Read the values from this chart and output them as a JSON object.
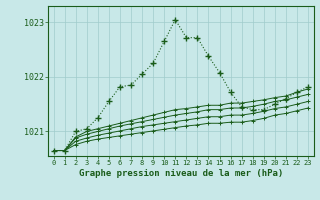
{
  "title": "Graphe pression niveau de la mer (hPa)",
  "bg_color": "#c8e8e8",
  "grid_color": "#a0cccc",
  "line_color": "#1a5c1a",
  "x_labels": [
    "0",
    "1",
    "2",
    "3",
    "4",
    "5",
    "6",
    "7",
    "8",
    "9",
    "10",
    "11",
    "12",
    "13",
    "14",
    "15",
    "16",
    "17",
    "18",
    "19",
    "20",
    "21",
    "22",
    "23"
  ],
  "ylim": [
    1020.55,
    1023.3
  ],
  "yticks": [
    1021,
    1022,
    1023
  ],
  "series_main": [
    1020.65,
    1020.65,
    1021.0,
    1021.05,
    1021.25,
    1021.55,
    1021.82,
    1021.85,
    1022.05,
    1022.25,
    1022.65,
    1023.05,
    1022.72,
    1022.72,
    1022.38,
    1022.08,
    1021.72,
    1021.45,
    1021.4,
    1021.4,
    1021.5,
    1021.6,
    1021.72,
    1021.82
  ],
  "series_flat": [
    [
      1020.65,
      1020.65,
      1020.9,
      1021.0,
      1021.05,
      1021.1,
      1021.15,
      1021.2,
      1021.25,
      1021.3,
      1021.35,
      1021.4,
      1021.42,
      1021.45,
      1021.48,
      1021.48,
      1021.52,
      1021.52,
      1021.55,
      1021.58,
      1021.62,
      1021.65,
      1021.72,
      1021.78
    ],
    [
      1020.65,
      1020.65,
      1020.88,
      1020.95,
      1021.0,
      1021.05,
      1021.1,
      1021.14,
      1021.18,
      1021.22,
      1021.26,
      1021.3,
      1021.33,
      1021.36,
      1021.4,
      1021.4,
      1021.43,
      1021.43,
      1021.46,
      1021.5,
      1021.55,
      1021.58,
      1021.63,
      1021.68
    ],
    [
      1020.65,
      1020.65,
      1020.82,
      1020.88,
      1020.93,
      1020.97,
      1021.01,
      1021.05,
      1021.09,
      1021.12,
      1021.15,
      1021.18,
      1021.21,
      1021.24,
      1021.27,
      1021.27,
      1021.3,
      1021.3,
      1021.33,
      1021.37,
      1021.42,
      1021.45,
      1021.5,
      1021.55
    ],
    [
      1020.65,
      1020.65,
      1020.76,
      1020.82,
      1020.86,
      1020.89,
      1020.92,
      1020.95,
      1020.98,
      1021.01,
      1021.04,
      1021.07,
      1021.1,
      1021.12,
      1021.15,
      1021.15,
      1021.17,
      1021.17,
      1021.2,
      1021.24,
      1021.3,
      1021.33,
      1021.38,
      1021.43
    ]
  ]
}
